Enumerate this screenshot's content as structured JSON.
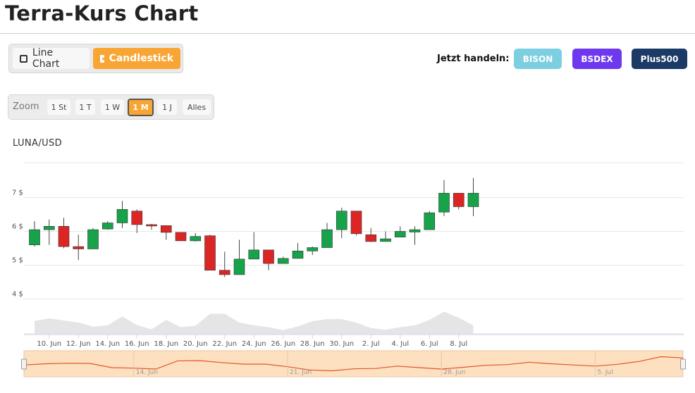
{
  "page": {
    "title": "Terra-Kurs Chart"
  },
  "chart_type_toggle": {
    "line_label": "Line Chart",
    "candlestick_label": "Candlestick",
    "active": "candlestick",
    "line_icon": "line-chart-icon",
    "candle_icon": "candlestick-icon"
  },
  "trade": {
    "label": "Jetzt handeln:",
    "brokers": [
      {
        "name": "BISON",
        "color": "#7ccfe0"
      },
      {
        "name": "BSDEX",
        "color": "#6e39ee"
      },
      {
        "name": "Plus500",
        "color": "#1b3a66"
      }
    ]
  },
  "zoom": {
    "label": "Zoom",
    "options": [
      "1 St",
      "1 T",
      "1 W",
      "1 M",
      "1 J",
      "Alles"
    ],
    "active": "1 M"
  },
  "colors": {
    "up": "#16a34a",
    "down": "#dc2626",
    "accent": "#f8a534"
  },
  "chart_data": {
    "type": "candlestick",
    "title": "LUNA/USD",
    "y_tick_labels": [
      "4 $",
      "5 $",
      "6 $",
      "7 $"
    ],
    "y_ticks": [
      4,
      5,
      6,
      7
    ],
    "ylim": [
      3.0,
      8.0
    ],
    "x_tick_labels": [
      "10. Jun",
      "12. Jun",
      "14. Jun",
      "16. Jun",
      "18. Jun",
      "20. Jun",
      "22. Jun",
      "24. Jun",
      "26. Jun",
      "28. Jun",
      "30. Jun",
      "2. Jul",
      "4. Jul",
      "6. Jul",
      "8. Jul"
    ],
    "x_tick_days": [
      1,
      3,
      5,
      7,
      9,
      11,
      13,
      15,
      17,
      19,
      21,
      23,
      25,
      27,
      29
    ],
    "grid": true,
    "candles": [
      {
        "date": "9. Jun",
        "open": 5.6,
        "high": 6.3,
        "low": 5.55,
        "close": 6.05
      },
      {
        "date": "10. Jun",
        "open": 6.05,
        "high": 6.35,
        "low": 5.6,
        "close": 6.15
      },
      {
        "date": "11. Jun",
        "open": 6.15,
        "high": 6.4,
        "low": 5.5,
        "close": 5.55
      },
      {
        "date": "12. Jun",
        "open": 5.55,
        "high": 5.9,
        "low": 5.15,
        "close": 5.48
      },
      {
        "date": "13. Jun",
        "open": 5.48,
        "high": 6.1,
        "low": 5.48,
        "close": 6.05
      },
      {
        "date": "14. Jun",
        "open": 6.07,
        "high": 6.3,
        "low": 6.05,
        "close": 6.25
      },
      {
        "date": "15. Jun",
        "open": 6.25,
        "high": 6.9,
        "low": 6.1,
        "close": 6.65
      },
      {
        "date": "16. Jun",
        "open": 6.6,
        "high": 6.65,
        "low": 5.95,
        "close": 6.2
      },
      {
        "date": "17. Jun",
        "open": 6.2,
        "high": 6.22,
        "low": 6.05,
        "close": 6.17
      },
      {
        "date": "18. Jun",
        "open": 6.17,
        "high": 6.18,
        "low": 5.75,
        "close": 5.97
      },
      {
        "date": "19. Jun",
        "open": 5.97,
        "high": 5.98,
        "low": 5.72,
        "close": 5.72
      },
      {
        "date": "20. Jun",
        "open": 5.72,
        "high": 5.95,
        "low": 5.7,
        "close": 5.85
      },
      {
        "date": "21. Jun",
        "open": 5.87,
        "high": 5.9,
        "low": 4.85,
        "close": 4.85
      },
      {
        "date": "22. Jun",
        "open": 4.85,
        "high": 5.4,
        "low": 4.65,
        "close": 4.72
      },
      {
        "date": "23. Jun",
        "open": 4.72,
        "high": 5.75,
        "low": 4.72,
        "close": 5.18
      },
      {
        "date": "24. Jun",
        "open": 5.18,
        "high": 5.98,
        "low": 5.18,
        "close": 5.45
      },
      {
        "date": "25. Jun",
        "open": 5.45,
        "high": 5.45,
        "low": 4.85,
        "close": 5.05
      },
      {
        "date": "26. Jun",
        "open": 5.05,
        "high": 5.25,
        "low": 5.05,
        "close": 5.2
      },
      {
        "date": "27. Jun",
        "open": 5.2,
        "high": 5.65,
        "low": 5.2,
        "close": 5.42
      },
      {
        "date": "28. Jun",
        "open": 5.42,
        "high": 5.55,
        "low": 5.3,
        "close": 5.52
      },
      {
        "date": "29. Jun",
        "open": 5.52,
        "high": 6.25,
        "low": 5.52,
        "close": 6.05
      },
      {
        "date": "30. Jun",
        "open": 6.05,
        "high": 6.7,
        "low": 5.8,
        "close": 6.6
      },
      {
        "date": "1. Jul",
        "open": 6.6,
        "high": 6.6,
        "low": 5.88,
        "close": 5.93
      },
      {
        "date": "2. Jul",
        "open": 5.9,
        "high": 6.1,
        "low": 5.68,
        "close": 5.7
      },
      {
        "date": "3. Jul",
        "open": 5.7,
        "high": 6.0,
        "low": 5.7,
        "close": 5.78
      },
      {
        "date": "4. Jul",
        "open": 5.83,
        "high": 6.15,
        "low": 5.83,
        "close": 6.0
      },
      {
        "date": "5. Jul",
        "open": 5.98,
        "high": 6.15,
        "low": 5.6,
        "close": 6.05
      },
      {
        "date": "6. Jul",
        "open": 6.05,
        "high": 6.6,
        "low": 6.05,
        "close": 6.55
      },
      {
        "date": "7. Jul",
        "open": 6.57,
        "high": 7.52,
        "low": 6.45,
        "close": 7.13
      },
      {
        "date": "8. Jul",
        "open": 7.13,
        "high": 7.13,
        "low": 6.65,
        "close": 6.73
      },
      {
        "date": "9. Jul",
        "open": 6.73,
        "high": 7.58,
        "low": 6.45,
        "close": 7.13
      }
    ],
    "volume_relative": [
      0.48,
      0.58,
      0.5,
      0.42,
      0.27,
      0.32,
      0.65,
      0.33,
      0.17,
      0.52,
      0.25,
      0.3,
      0.75,
      0.75,
      0.42,
      0.32,
      0.25,
      0.14,
      0.28,
      0.47,
      0.55,
      0.55,
      0.42,
      0.22,
      0.15,
      0.25,
      0.32,
      0.52,
      0.83,
      0.6,
      0.32
    ],
    "navigator": {
      "x_tick_labels": [
        "14. Jun",
        "21. Jun",
        "28. Jun",
        "5. Jul"
      ],
      "x_tick_days": [
        5,
        12,
        19,
        26
      ],
      "series": [
        6.15,
        6.25,
        6.3,
        6.28,
        5.92,
        5.88,
        5.8,
        6.5,
        6.52,
        6.35,
        6.22,
        6.22,
        6.0,
        5.72,
        5.65,
        5.82,
        5.85,
        6.05,
        5.92,
        5.8,
        5.95,
        6.12,
        6.18,
        6.38,
        6.25,
        6.15,
        6.05,
        6.2,
        6.45,
        6.85,
        6.75
      ]
    }
  }
}
